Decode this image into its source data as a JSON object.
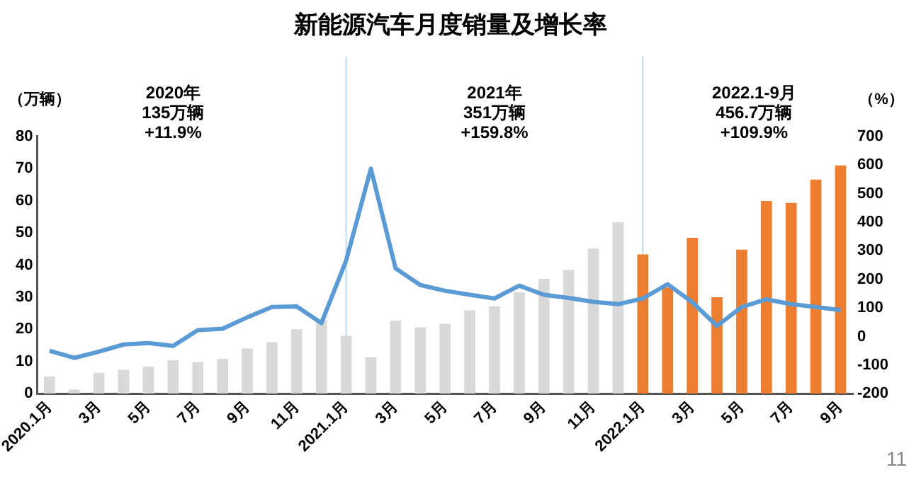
{
  "chart_data": {
    "type": "bar",
    "title": "新能源汽车月度销量及增长率",
    "ylabel": "（万辆）",
    "y2label": "（%）",
    "categories": [
      "2020.1月",
      null,
      "3月",
      null,
      "5月",
      null,
      "7月",
      null,
      "9月",
      null,
      "11月",
      null,
      "2021.1月",
      null,
      "3月",
      null,
      "5月",
      null,
      "7月",
      null,
      "9月",
      null,
      "11月",
      null,
      "2022.1月",
      null,
      "3月",
      null,
      "5月",
      null,
      "7月",
      null,
      "9月"
    ],
    "series": [
      {
        "colors": [
          "#d9d9d9",
          "#d9d9d9",
          "#d9d9d9",
          "#d9d9d9",
          "#d9d9d9",
          "#d9d9d9",
          "#d9d9d9",
          "#d9d9d9",
          "#d9d9d9",
          "#d9d9d9",
          "#d9d9d9",
          "#d9d9d9",
          "#d9d9d9",
          "#d9d9d9",
          "#d9d9d9",
          "#d9d9d9",
          "#d9d9d9",
          "#d9d9d9",
          "#d9d9d9",
          "#d9d9d9",
          "#d9d9d9",
          "#d9d9d9",
          "#d9d9d9",
          "#d9d9d9",
          "#ed7d31",
          "#ed7d31",
          "#ed7d31",
          "#ed7d31",
          "#ed7d31",
          "#ed7d31",
          "#ed7d31",
          "#ed7d31",
          "#ed7d31"
        ],
        "values": [
          5.3,
          1.3,
          6.5,
          7.4,
          8.4,
          10.4,
          9.8,
          10.8,
          14.1,
          16,
          20,
          23,
          18,
          11.3,
          22.7,
          20.6,
          21.7,
          25.9,
          27.1,
          31.5,
          35.7,
          38.5,
          45.1,
          53.3,
          43.3,
          33,
          48.5,
          30,
          44.8,
          59.9,
          59.3,
          66.6,
          71
        ]
      },
      {
        "type": "line",
        "axis": "y2",
        "color": "#5b9bd5",
        "marker": "none",
        "line_style": "solid",
        "values": [
          -50,
          -75,
          -53,
          -28,
          -23,
          -33,
          22,
          27,
          67,
          103,
          105,
          47,
          266,
          587,
          238,
          180,
          160,
          146,
          133,
          178,
          146,
          135,
          121,
          113,
          133,
          183,
          120,
          37,
          103,
          130,
          113,
          103,
          92
        ]
      }
    ],
    "ylim": [
      0,
      80
    ],
    "yticks": [
      0,
      10,
      20,
      30,
      40,
      50,
      60,
      70,
      80
    ],
    "y2lim": [
      -200,
      700
    ],
    "y2ticks": [
      -200,
      -100,
      0,
      100,
      200,
      300,
      400,
      500,
      600,
      700
    ],
    "ref_lines": [
      {
        "axis": "x",
        "value": "2021.1月",
        "color": "#bdd7ee"
      },
      {
        "axis": "x",
        "value": "2022.1月",
        "color": "#bdd7ee"
      }
    ],
    "annotations": [
      "2020年\n135万辆\n+11.9%",
      "2021年\n351万辆\n+159.8%",
      "2022.1-9月\n456.7万辆\n+109.9%",
      "11"
    ],
    "grid": false,
    "legend": false
  }
}
